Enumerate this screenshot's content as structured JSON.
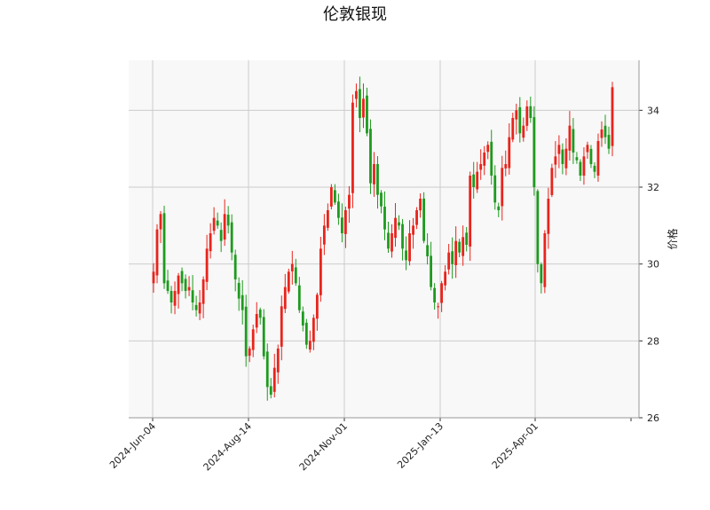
{
  "chart_data": {
    "type": "candlestick",
    "title": "伦敦银现",
    "xlabel": "",
    "ylabel": "价格",
    "ylim": [
      26,
      35.3
    ],
    "yticks": [
      26,
      28,
      30,
      32,
      34
    ],
    "x_tick_labels": [
      "2024-Jun-04",
      "2024-Aug-14",
      "2024-Nov-01",
      "2025-Jan-13",
      "2025-Apr-01"
    ],
    "grid": true,
    "y_axis_side": "right",
    "colors": {
      "up": "#e8241c",
      "down": "#1e9a1e",
      "background": "#f8f8f8",
      "grid": "#cccccc"
    },
    "closes": [
      29.8,
      30.9,
      31.3,
      29.5,
      29.3,
      29.0,
      29.3,
      29.7,
      29.5,
      29.3,
      29.4,
      29.0,
      28.8,
      29.0,
      29.6,
      30.4,
      30.8,
      31.2,
      31.0,
      30.6,
      31.3,
      31.0,
      30.3,
      29.6,
      29.1,
      28.8,
      27.6,
      27.8,
      28.3,
      28.7,
      28.6,
      27.6,
      26.8,
      26.6,
      27.3,
      27.8,
      28.9,
      29.4,
      29.8,
      30.0,
      29.5,
      28.8,
      28.4,
      27.9,
      28.0,
      28.6,
      29.2,
      30.4,
      31.0,
      31.4,
      32.0,
      31.6,
      31.2,
      30.8,
      31.4,
      31.8,
      34.2,
      34.5,
      33.8,
      34.3,
      33.4,
      32.1,
      32.6,
      31.8,
      31.5,
      30.9,
      30.4,
      30.8,
      31.2,
      31.0,
      30.4,
      30.1,
      30.8,
      31.0,
      31.4,
      31.7,
      30.6,
      30.2,
      29.4,
      29.0,
      28.9,
      29.5,
      29.8,
      30.3,
      30.0,
      30.6,
      30.3,
      30.7,
      30.5,
      32.3,
      32.0,
      32.4,
      32.6,
      32.9,
      33.1,
      32.3,
      31.6,
      31.4,
      32.5,
      32.6,
      33.3,
      33.8,
      34.0,
      33.4,
      33.6,
      34.1,
      33.8,
      32.0,
      30.0,
      29.5,
      30.8,
      31.7,
      32.5,
      32.8,
      33.1,
      32.6,
      33.0,
      33.6,
      32.9,
      32.7,
      32.3,
      32.8,
      33.1,
      32.6,
      32.4,
      33.2,
      33.5,
      33.3,
      33.0,
      34.6
    ]
  }
}
